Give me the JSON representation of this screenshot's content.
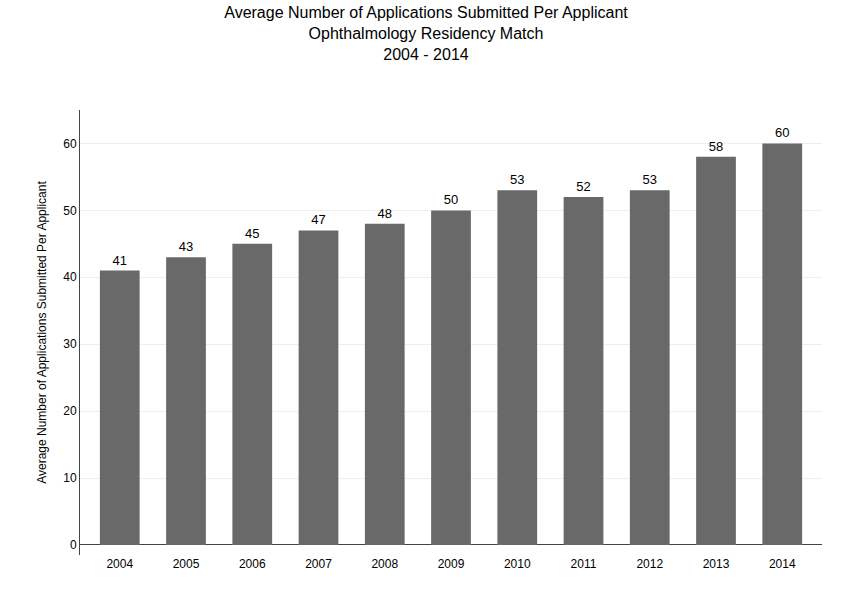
{
  "chart_data": {
    "type": "bar",
    "title": "Average Number of Applications Submitted Per Applicant\nOphthalmology Residency Match\n2004 - 2014",
    "ylabel": "Average Number of Applications Submitted Per Applicant",
    "categories": [
      "2004",
      "2005",
      "2006",
      "2007",
      "2008",
      "2009",
      "2010",
      "2011",
      "2012",
      "2013",
      "2014"
    ],
    "values": [
      41,
      43,
      45,
      47,
      48,
      50,
      53,
      52,
      53,
      58,
      60
    ],
    "color": "#696969",
    "ylim": [
      -1.5,
      65
    ],
    "yticks": [
      0,
      10,
      20,
      30,
      40,
      50,
      60
    ],
    "grid": true,
    "data_labels": true
  }
}
